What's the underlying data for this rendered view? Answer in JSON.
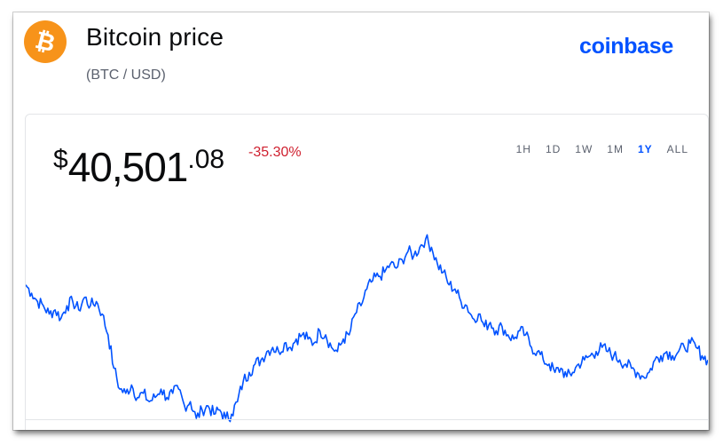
{
  "header": {
    "title": "Bitcoin price",
    "subtitle": "(BTC / USD)",
    "brand": "coinbase",
    "logo_icon": "bitcoin-icon"
  },
  "price": {
    "currency": "$",
    "integer": "40,501",
    "decimal": ".08",
    "change": "-35.30%"
  },
  "ranges": [
    {
      "label": "1H",
      "active": false
    },
    {
      "label": "1D",
      "active": false
    },
    {
      "label": "1W",
      "active": false
    },
    {
      "label": "1M",
      "active": false
    },
    {
      "label": "1Y",
      "active": true
    },
    {
      "label": "ALL",
      "active": false
    }
  ],
  "colors": {
    "brand": "#0052ff",
    "line": "#0052ff",
    "negative": "#cf202f",
    "logo": "#f7931a"
  },
  "chart_data": {
    "type": "line",
    "series": [
      {
        "values": [
          52,
          50,
          48,
          47,
          45,
          46,
          44,
          47,
          48,
          46,
          49,
          47,
          48,
          45,
          40,
          32,
          27,
          26,
          28,
          25,
          26,
          24,
          25,
          27,
          25,
          26,
          27,
          23,
          24,
          20,
          22,
          23,
          21,
          22,
          20,
          21,
          24,
          29,
          31,
          33,
          34,
          36,
          37,
          36,
          38,
          37,
          39,
          40,
          39,
          38,
          41,
          40,
          37,
          36,
          39,
          40,
          45,
          47,
          51,
          53,
          54,
          55,
          57,
          56,
          58,
          60,
          59,
          61,
          63,
          61,
          57,
          55,
          52,
          51,
          48,
          47,
          44,
          45,
          42,
          43,
          41,
          42,
          40,
          39,
          41,
          40,
          37,
          36,
          34,
          33,
          31,
          32,
          30,
          31,
          33,
          34,
          35,
          36,
          37,
          36,
          35,
          34,
          33,
          32,
          31,
          30,
          31,
          34,
          35,
          36,
          35,
          36,
          37,
          38,
          37,
          35,
          34
        ]
      }
    ]
  }
}
